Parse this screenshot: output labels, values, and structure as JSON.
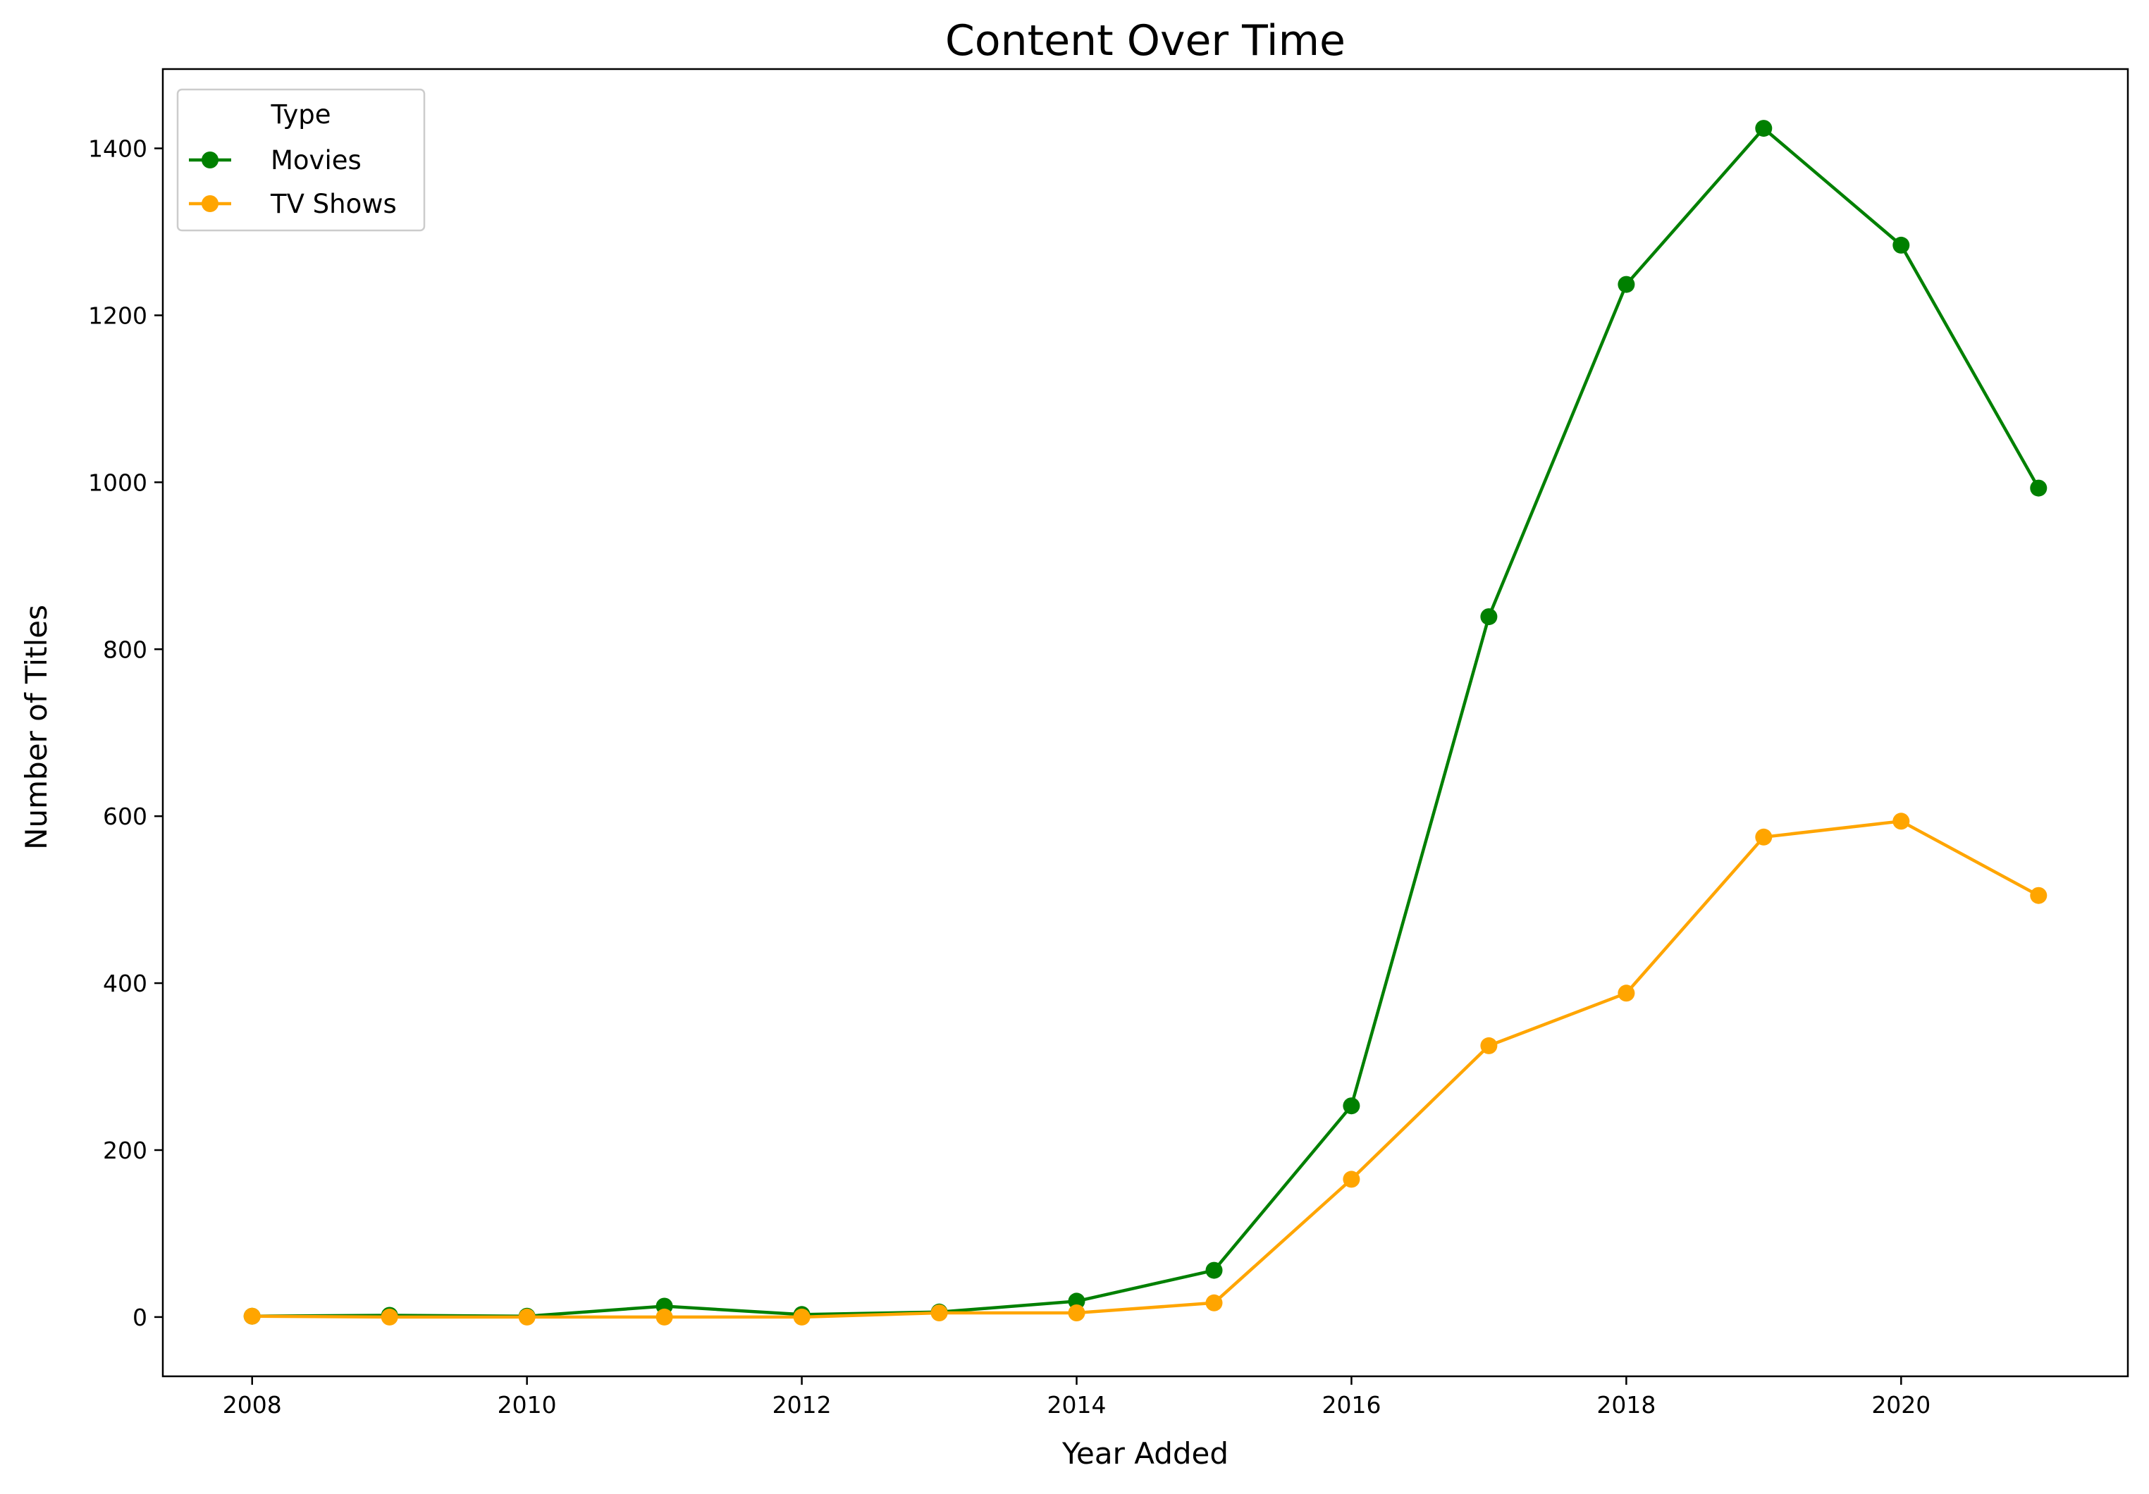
{
  "chart_data": {
    "type": "line",
    "title": "Content Over Time",
    "xlabel": "Year Added",
    "ylabel": "Number of Titles",
    "x": [
      2008,
      2009,
      2010,
      2011,
      2012,
      2013,
      2014,
      2015,
      2016,
      2017,
      2018,
      2019,
      2020,
      2021
    ],
    "x_ticks": [
      2008,
      2010,
      2012,
      2014,
      2016,
      2018,
      2020
    ],
    "y_ticks": [
      0,
      200,
      400,
      600,
      800,
      1000,
      1200,
      1400
    ],
    "xlim": [
      2007.35,
      2021.65
    ],
    "ylim": [
      -71,
      1495
    ],
    "grid": false,
    "legend": {
      "title": "Type",
      "placement": "top-left"
    },
    "series": [
      {
        "name": "Movies",
        "color": "#008000",
        "marker": "circle",
        "values": [
          1,
          2,
          1,
          13,
          3,
          6,
          19,
          56,
          253,
          839,
          1237,
          1424,
          1284,
          993
        ]
      },
      {
        "name": "TV Shows",
        "color": "#ffa500",
        "marker": "circle",
        "values": [
          1,
          0,
          0,
          0,
          0,
          5,
          5,
          17,
          165,
          325,
          388,
          575,
          594,
          505
        ]
      }
    ]
  }
}
